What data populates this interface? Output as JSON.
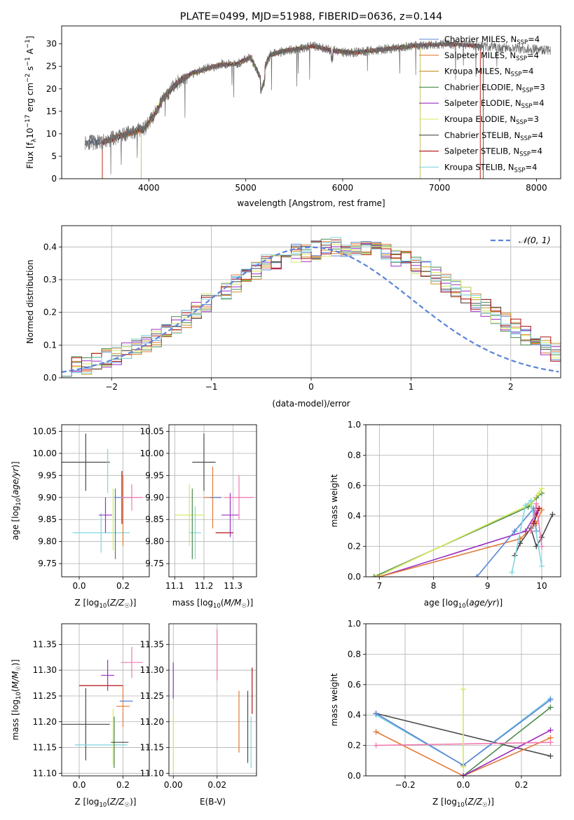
{
  "colors": {
    "Chabrier MILES": "#5b84d8",
    "Salpeter MILES": "#e07b39",
    "Kroupa MILES": "#c9922a",
    "Chabrier ELODIE": "#4d8a4d",
    "Salpeter ELODIE": "#9b2fc0",
    "Kroupa ELODIE": "#d4e85a",
    "Chabrier STELIB": "#4a4a4a",
    "Salpeter STELIB": "#b01010",
    "Kroupa STELIB": "#7fd6e0",
    "pink": "#f07ab0",
    "gauss": "#5b84d8",
    "grid": "#b0b0b0"
  },
  "spectrum_panel": {
    "title": "PLATE=0499, MJD=51988, FIBERID=0636, z=0.144",
    "xlabel": "wavelength [Angstrom, rest frame]",
    "ylabel_main": "Flux [f",
    "ylabel_sub": "λ",
    "ylabel_rest": "10",
    "ylabel_exp1": "−17",
    "ylabel_mid": " erg cm",
    "ylabel_exp2": "−2",
    "ylabel_mid2": " s",
    "ylabel_exp3": "−1",
    "ylabel_end": " A",
    "ylabel_exp4": "−1",
    "ylabel_close": "]",
    "legend": [
      {
        "text": "Chabrier MILES, N",
        "sub": "SSP",
        "tail": "=4",
        "color": "Chabrier MILES"
      },
      {
        "text": "Salpeter MILES, N",
        "sub": "SSP",
        "tail": "=4",
        "color": "Salpeter MILES"
      },
      {
        "text": "Kroupa MILES, N",
        "sub": "SSP",
        "tail": "=4",
        "color": "Kroupa MILES"
      },
      {
        "text": "Chabrier ELODIE, N",
        "sub": "SSP",
        "tail": "=3",
        "color": "Chabrier ELODIE"
      },
      {
        "text": "Salpeter ELODIE, N",
        "sub": "SSP",
        "tail": "=4",
        "color": "Salpeter ELODIE"
      },
      {
        "text": "Kroupa ELODIE, N",
        "sub": "SSP",
        "tail": "=3",
        "color": "Kroupa ELODIE"
      },
      {
        "text": "Chabrier STELIB, N",
        "sub": "SSP",
        "tail": "=4",
        "color": "Chabrier STELIB"
      },
      {
        "text": "Salpeter STELIB, N",
        "sub": "SSP",
        "tail": "=4",
        "color": "Salpeter STELIB"
      },
      {
        "text": "Kroupa STELIB, N",
        "sub": "SSP",
        "tail": "=4",
        "color": "Kroupa STELIB"
      }
    ]
  },
  "chart_data": [
    {
      "type": "line",
      "title": "PLATE=0499, MJD=51988, FIBERID=0636, z=0.144",
      "xlabel": "wavelength [Angstrom, rest frame]",
      "ylabel": "Flux [fλ10−17 erg cm−2 s−1 A−1]",
      "xlim": [
        3100,
        8250
      ],
      "ylim": [
        0,
        34
      ],
      "xticks": [
        4000,
        5000,
        6000,
        7000,
        8000
      ],
      "yticks": [
        0,
        5,
        10,
        15,
        20,
        25,
        30
      ],
      "x": [
        3340,
        3500,
        3700,
        3850,
        3950,
        4050,
        4150,
        4300,
        4450,
        4600,
        4750,
        4900,
        5050,
        5150,
        5250,
        5400,
        5550,
        5700,
        5900,
        6100,
        6300,
        6500,
        6700,
        6900,
        7100,
        7300,
        7450,
        7600,
        7800,
        8000,
        8150
      ],
      "series": [
        {
          "name": "data",
          "values": [
            8.2,
            8.0,
            9.5,
            10.5,
            11.0,
            14.0,
            18.0,
            21.5,
            23.5,
            24.5,
            25.5,
            25.5,
            27.0,
            22.5,
            27.5,
            28.5,
            29.0,
            29.5,
            28.5,
            28.0,
            28.5,
            29.0,
            29.5,
            29.8,
            30.0,
            29.7,
            29.5,
            29.2,
            29.0,
            28.8,
            28.5
          ]
        },
        {
          "name": "Chabrier MILES, N_SSP=4",
          "start": 3340,
          "end": 7450
        },
        {
          "name": "Salpeter MILES, N_SSP=4",
          "start": 3520,
          "end": 7420
        },
        {
          "name": "Kroupa MILES, N_SSP=4",
          "start": 3520,
          "end": 6800
        },
        {
          "name": "Chabrier ELODIE, N_SSP=3",
          "start": 3920,
          "end": 6800
        },
        {
          "name": "Salpeter ELODIE, N_SSP=4",
          "start": 3920,
          "end": 6800
        },
        {
          "name": "Kroupa ELODIE, N_SSP=3",
          "start": 3920,
          "end": 6800
        },
        {
          "name": "Chabrier STELIB, N_SSP=4",
          "start": 3340,
          "end": 7450
        },
        {
          "name": "Salpeter STELIB, N_SSP=4",
          "start": 3520,
          "end": 7420
        },
        {
          "name": "Kroupa STELIB, N_SSP=4",
          "start": 3340,
          "end": 7450
        }
      ]
    },
    {
      "type": "step",
      "xlabel": "(data-model)/error",
      "ylabel": "Normed distribution",
      "xlim": [
        -2.5,
        2.5
      ],
      "ylim": [
        0,
        0.465
      ],
      "xticks": [
        -2,
        -1,
        0,
        1,
        2
      ],
      "yticks": [
        0.0,
        0.1,
        0.2,
        0.3,
        0.4
      ],
      "legend": "𝒩(0, 1)",
      "legend_position": "top-right",
      "bin_width": 0.1,
      "envelope": [
        0.03,
        0.035,
        0.04,
        0.05,
        0.06,
        0.07,
        0.08,
        0.095,
        0.1,
        0.12,
        0.14,
        0.16,
        0.18,
        0.21,
        0.23,
        0.25,
        0.27,
        0.29,
        0.31,
        0.33,
        0.35,
        0.36,
        0.37,
        0.38,
        0.385,
        0.39,
        0.395,
        0.4,
        0.4,
        0.395,
        0.39,
        0.385,
        0.38,
        0.37,
        0.36,
        0.345,
        0.33,
        0.31,
        0.29,
        0.27,
        0.25,
        0.23,
        0.21,
        0.19,
        0.17,
        0.15,
        0.13,
        0.11,
        0.095,
        0.08
      ]
    },
    {
      "type": "errorbar",
      "xlabel": "Z [log10(Z/Z☉)]",
      "ylabel": "age  [log10(age/yr)]",
      "xlim": [
        -0.08,
        0.32
      ],
      "ylim": [
        9.72,
        10.065
      ],
      "xticks": [
        0.0,
        0.2
      ],
      "yticks": [
        9.75,
        9.8,
        9.85,
        9.9,
        9.95,
        10.0,
        10.05
      ],
      "points": [
        {
          "c": "Chabrier STELIB",
          "x": 0.03,
          "xe": 0.11,
          "y": 9.98,
          "ye": 0.065
        },
        {
          "c": "Kroupa STELIB",
          "x": 0.1,
          "xe": 0.13,
          "y": 9.82,
          "ye": 0.045
        },
        {
          "c": "Salpeter ELODIE",
          "x": 0.12,
          "xe": 0.03,
          "y": 9.86,
          "ye": 0.04
        },
        {
          "c": "Kroupa STELIB",
          "x": 0.13,
          "xe": 0.0,
          "y": 9.96,
          "ye": 0.05
        },
        {
          "c": "Kroupa ELODIE",
          "x": 0.155,
          "xe": 0.0,
          "y": 9.85,
          "ye": 0.07
        },
        {
          "c": "Chabrier ELODIE",
          "x": 0.165,
          "xe": 0.0,
          "y": 9.84,
          "ye": 0.08
        },
        {
          "c": "Salpeter MILES",
          "x": 0.2,
          "xe": 0.0,
          "y": 9.87,
          "ye": 0.08
        },
        {
          "c": "Salpeter STELIB",
          "x": 0.195,
          "xe": 0.0,
          "y": 9.9,
          "ye": 0.06
        },
        {
          "c": "Chabrier MILES",
          "x": 0.2,
          "xe": 0.04,
          "y": 9.9,
          "ye": 0.0
        },
        {
          "c": "pink",
          "x": 0.24,
          "xe": 0.05,
          "y": 9.9,
          "ye": 0.03
        }
      ]
    },
    {
      "type": "errorbar",
      "xlabel": "mass [log10(M/M☉)]",
      "xlim": [
        11.08,
        11.38
      ],
      "ylim": [
        9.72,
        10.065
      ],
      "xticks": [
        11.1,
        11.2,
        11.3
      ],
      "yticks": [
        9.75,
        9.8,
        9.85,
        9.9,
        9.95,
        10.0,
        10.05
      ],
      "points": [
        {
          "c": "Chabrier STELIB",
          "x": 11.2,
          "xe": 0.04,
          "y": 9.98,
          "ye": 0.065
        },
        {
          "c": "Kroupa ELODIE",
          "x": 11.15,
          "xe": 0.05,
          "y": 9.86,
          "ye": 0.07
        },
        {
          "c": "Kroupa STELIB",
          "x": 11.17,
          "xe": 0.02,
          "y": 9.82,
          "ye": 0.06
        },
        {
          "c": "Chabrier ELODIE",
          "x": 11.16,
          "xe": 0.0,
          "y": 9.84,
          "ye": 0.08
        },
        {
          "c": "Salpeter MILES",
          "x": 11.23,
          "xe": 0.03,
          "y": 9.9,
          "ye": 0.07
        },
        {
          "c": "Chabrier MILES",
          "x": 11.24,
          "xe": 0.0,
          "y": 9.9,
          "ye": 0.0
        },
        {
          "c": "Salpeter STELIB",
          "x": 11.27,
          "xe": 0.03,
          "y": 9.82,
          "ye": 0.0
        },
        {
          "c": "Salpeter ELODIE",
          "x": 11.29,
          "xe": 0.03,
          "y": 9.86,
          "ye": 0.05
        },
        {
          "c": "pink",
          "x": 11.32,
          "xe": 0.05,
          "y": 9.9,
          "ye": 0.05
        }
      ]
    },
    {
      "type": "line",
      "xlabel": "age  [log10(age/yr)]",
      "ylabel": "mass weight",
      "xlim": [
        6.75,
        10.35
      ],
      "ylim": [
        0,
        1.0
      ],
      "xticks": [
        7,
        8,
        9,
        10
      ],
      "yticks": [
        0.0,
        0.2,
        0.4,
        0.6,
        0.8,
        1.0
      ],
      "series": [
        {
          "c": "Chabrier ELODIE",
          "x": [
            6.9,
            9.75,
            9.9,
            10.0
          ],
          "y": [
            0.0,
            0.46,
            0.52,
            0.55
          ]
        },
        {
          "c": "Kroupa ELODIE",
          "x": [
            6.95,
            9.8,
            9.95,
            10.0
          ],
          "y": [
            0.0,
            0.48,
            0.55,
            0.58
          ]
        },
        {
          "c": "Salpeter ELODIE",
          "x": [
            7.0,
            9.7,
            9.95,
            9.9
          ],
          "y": [
            0.0,
            0.3,
            0.45,
            0.42
          ]
        },
        {
          "c": "Salpeter MILES",
          "x": [
            7.0,
            9.6,
            9.9,
            10.0
          ],
          "y": [
            0.0,
            0.25,
            0.35,
            0.44
          ]
        },
        {
          "c": "Chabrier MILES",
          "x": [
            8.8,
            9.5,
            9.85,
            9.9
          ],
          "y": [
            0.0,
            0.3,
            0.45,
            0.3
          ]
        },
        {
          "c": "Chabrier STELIB",
          "x": [
            9.5,
            9.6,
            9.8,
            9.9,
            10.0,
            10.2
          ],
          "y": [
            0.14,
            0.22,
            0.32,
            0.2,
            0.26,
            0.41
          ]
        },
        {
          "c": "Kroupa STELIB",
          "x": [
            9.45,
            9.7,
            9.8,
            10.0
          ],
          "y": [
            0.03,
            0.47,
            0.5,
            0.07
          ]
        },
        {
          "c": "pink",
          "x": [
            9.8,
            9.9,
            10.0
          ],
          "y": [
            0.3,
            0.48,
            0.2
          ]
        },
        {
          "c": "Salpeter STELIB",
          "x": [
            9.85,
            9.95
          ],
          "y": [
            0.35,
            0.45
          ]
        }
      ]
    },
    {
      "type": "errorbar",
      "xlabel": "Z [log10(Z/Z☉)]",
      "ylabel": "mass [log10(M/M☉)]",
      "xlim": [
        -0.08,
        0.32
      ],
      "ylim": [
        11.095,
        11.39
      ],
      "xticks": [
        0.0,
        0.2
      ],
      "yticks": [
        11.1,
        11.15,
        11.2,
        11.25,
        11.3,
        11.35
      ],
      "points": [
        {
          "c": "Chabrier STELIB",
          "x": 0.03,
          "xe": 0.11,
          "y": 11.195,
          "ye": 0.07
        },
        {
          "c": "Kroupa STELIB",
          "x": 0.1,
          "xe": 0.12,
          "y": 11.155,
          "ye": 0.0
        },
        {
          "c": "Salpeter STELIB",
          "x": 0.1,
          "xe": 0.1,
          "y": 11.27,
          "ye": 0.0
        },
        {
          "c": "Salpeter ELODIE",
          "x": 0.13,
          "xe": 0.03,
          "y": 11.29,
          "ye": 0.03
        },
        {
          "c": "Kroupa ELODIE",
          "x": 0.155,
          "xe": 0.0,
          "y": 11.17,
          "ye": 0.055
        },
        {
          "c": "Chabrier ELODIE",
          "x": 0.16,
          "xe": 0.0,
          "y": 11.16,
          "ye": 0.05
        },
        {
          "c": "Chabrier STELIB",
          "x": 0.185,
          "xe": 0.04,
          "y": 11.16,
          "ye": 0.0
        },
        {
          "c": "Salpeter MILES",
          "x": 0.2,
          "xe": 0.03,
          "y": 11.23,
          "ye": 0.04
        },
        {
          "c": "Chabrier MILES",
          "x": 0.215,
          "xe": 0.03,
          "y": 11.24,
          "ye": 0.0
        },
        {
          "c": "pink",
          "x": 0.24,
          "xe": 0.05,
          "y": 11.315,
          "ye": 0.03
        }
      ]
    },
    {
      "type": "errorbar",
      "xlabel": "E(B-V)",
      "xlim": [
        -0.002,
        0.038
      ],
      "ylim": [
        11.095,
        11.39
      ],
      "xticks": [
        0.0,
        0.02
      ],
      "points": [
        {
          "c": "Salpeter ELODIE",
          "x": 0.0,
          "y": 11.28,
          "ye": 0.035
        },
        {
          "c": "Kroupa ELODIE",
          "x": 0.0,
          "y": 11.16,
          "ye": 0.055
        },
        {
          "c": "pink",
          "x": 0.02,
          "y": 11.33,
          "ye": 0.05
        },
        {
          "c": "Salpeter MILES",
          "x": 0.03,
          "y": 11.2,
          "ye": 0.06
        },
        {
          "c": "Chabrier STELIB",
          "x": 0.034,
          "y": 11.19,
          "ye": 0.07
        },
        {
          "c": "Salpeter STELIB",
          "x": 0.036,
          "y": 11.26,
          "ye": 0.045
        },
        {
          "c": "Kroupa STELIB",
          "x": 0.0355,
          "y": 11.16,
          "ye": 0.05
        }
      ]
    },
    {
      "type": "line",
      "xlabel": "Z [log10(Z/Z☉)]",
      "ylabel": "mass weight",
      "xlim": [
        -0.335,
        0.335
      ],
      "ylim": [
        0,
        1.0
      ],
      "xticks": [
        -0.2,
        0.0,
        0.2
      ],
      "yticks": [
        0.0,
        0.2,
        0.4,
        0.6,
        0.8,
        1.0
      ],
      "series": [
        {
          "c": "Chabrier STELIB",
          "x": [
            -0.3,
            0.3
          ],
          "y": [
            0.41,
            0.13
          ]
        },
        {
          "c": "Kroupa STELIB",
          "x": [
            -0.3,
            0.0,
            0.3
          ],
          "y": [
            0.4,
            0.07,
            0.51
          ]
        },
        {
          "c": "Chabrier MILES",
          "x": [
            -0.3,
            0.0,
            0.3
          ],
          "y": [
            0.41,
            0.07,
            0.5
          ]
        },
        {
          "c": "Salpeter MILES",
          "x": [
            -0.3,
            0.0,
            0.3
          ],
          "y": [
            0.29,
            0.0,
            0.25
          ]
        },
        {
          "c": "Chabrier ELODIE",
          "x": [
            0.0,
            0.3
          ],
          "y": [
            0.0,
            0.45
          ]
        },
        {
          "c": "Salpeter ELODIE",
          "x": [
            0.0,
            0.3
          ],
          "y": [
            0.0,
            0.3
          ]
        },
        {
          "c": "pink",
          "x": [
            -0.3,
            0.3
          ],
          "y": [
            0.2,
            0.22
          ]
        },
        {
          "c": "Kroupa ELODIE",
          "x": [
            0.0,
            0.0
          ],
          "y": [
            0.06,
            0.57
          ]
        }
      ]
    }
  ]
}
